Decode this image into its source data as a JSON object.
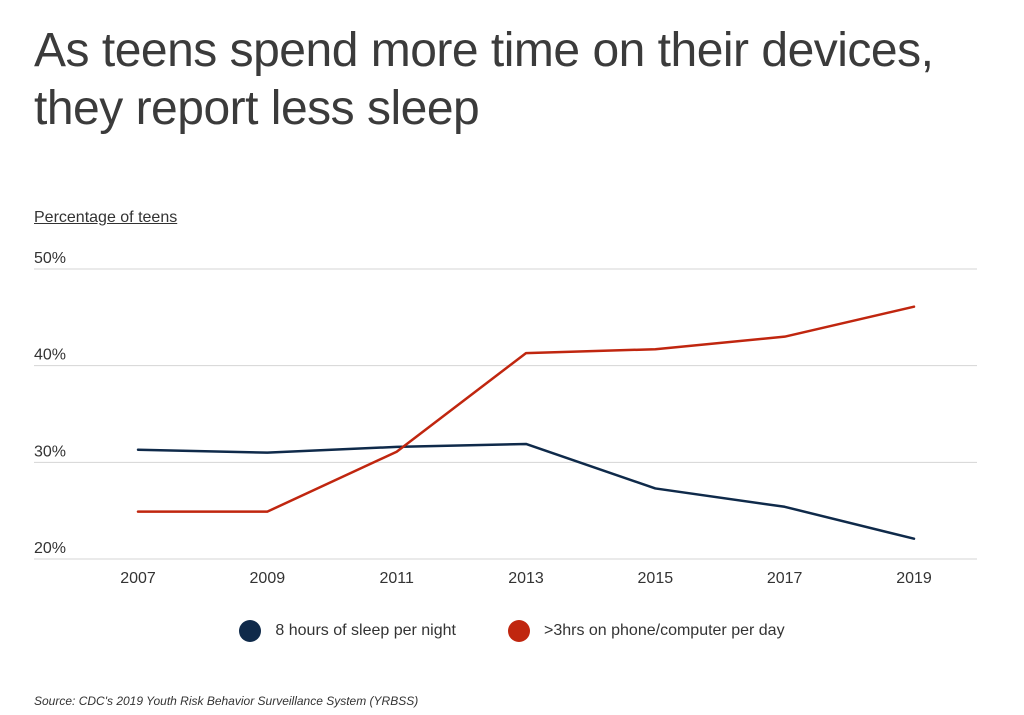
{
  "title": "As teens spend more time on their devices, they report less sleep",
  "source": "Source:  CDC's 2019 Youth Risk Behavior Surveillance System (YRBSS)",
  "chart_data": {
    "type": "line",
    "ylabel": "Percentage of teens",
    "xlabel": "",
    "categories": [
      "2007",
      "2009",
      "2011",
      "2013",
      "2015",
      "2017",
      "2019"
    ],
    "ylim": [
      20,
      50
    ],
    "yticks": [
      20,
      30,
      40,
      50
    ],
    "ytick_labels": [
      "20%",
      "30%",
      "40%",
      "50%"
    ],
    "grid": true,
    "legend_position": "bottom-center",
    "series": [
      {
        "name": "8 hours of sleep per night",
        "color": "#0f2a4a",
        "values": [
          31.3,
          31.0,
          31.6,
          31.9,
          27.3,
          25.4,
          22.1
        ]
      },
      {
        "name": ">3hrs on phone/computer per day",
        "color": "#c0260f",
        "values": [
          24.9,
          24.9,
          31.1,
          41.3,
          41.7,
          43.0,
          46.1
        ]
      }
    ]
  }
}
